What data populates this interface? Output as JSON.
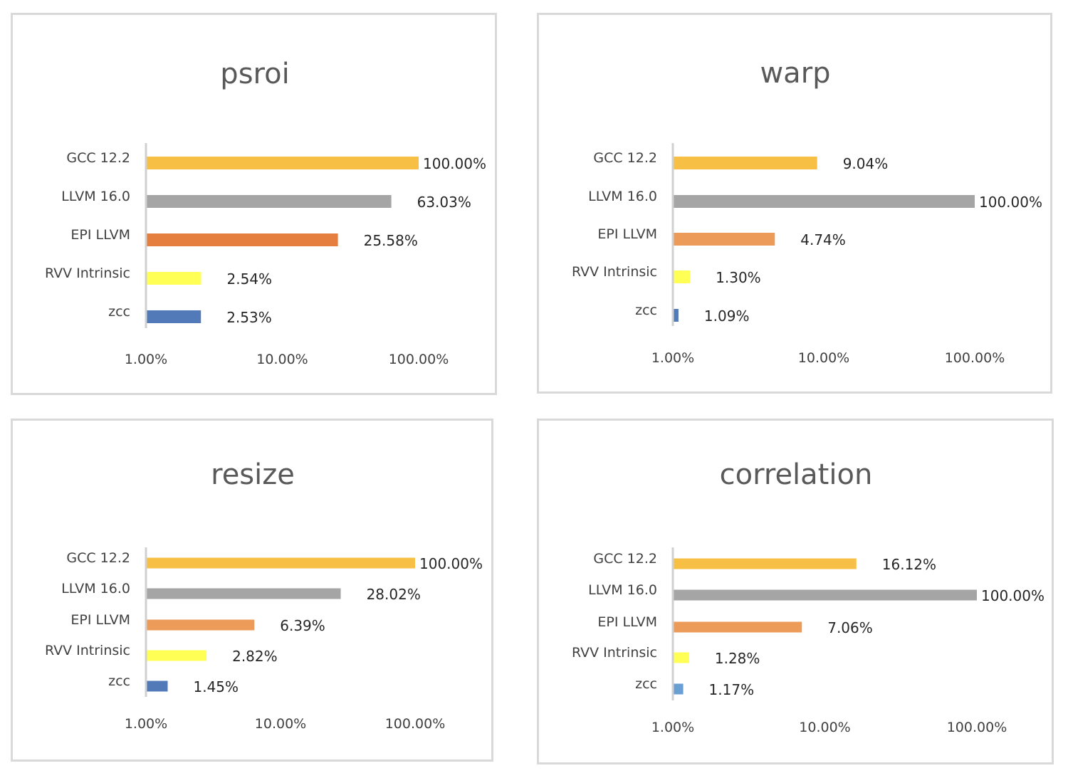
{
  "chart_data": [
    {
      "type": "bar",
      "orientation": "horizontal",
      "title": "psroi",
      "x_scale": "log",
      "xlim": [
        0.01,
        1.0
      ],
      "x_ticks": [
        "1.00%",
        "10.00%",
        "100.00%"
      ],
      "categories": [
        "GCC 12.2",
        "LLVM 16.0",
        "EPI LLVM",
        "RVV Intrinsic",
        "zcc"
      ],
      "values": [
        1.0,
        0.6303,
        0.2558,
        0.0254,
        0.0253
      ],
      "value_labels": [
        "100.00%",
        "63.03%",
        "25.58%",
        "2.54%",
        "2.53%"
      ],
      "colors": [
        "#f8bf45",
        "#a5a5a5",
        "#e57f3f",
        "#ffff55",
        "#527ab8"
      ]
    },
    {
      "type": "bar",
      "orientation": "horizontal",
      "title": "warp",
      "x_scale": "log",
      "xlim": [
        0.01,
        1.0
      ],
      "x_ticks": [
        "1.00%",
        "10.00%",
        "100.00%"
      ],
      "categories": [
        "GCC 12.2",
        "LLVM 16.0",
        "EPI LLVM",
        "RVV Intrinsic",
        "zcc"
      ],
      "values": [
        0.0904,
        1.0,
        0.0474,
        0.013,
        0.0109
      ],
      "value_labels": [
        "9.04%",
        "100.00%",
        "4.74%",
        "1.30%",
        "1.09%"
      ],
      "colors": [
        "#f8bf45",
        "#a5a5a5",
        "#ed9b59",
        "#ffff55",
        "#527ab8"
      ]
    },
    {
      "type": "bar",
      "orientation": "horizontal",
      "title": "resize",
      "x_scale": "log",
      "xlim": [
        0.01,
        1.0
      ],
      "x_ticks": [
        "1.00%",
        "10.00%",
        "100.00%"
      ],
      "categories": [
        "GCC 12.2",
        "LLVM 16.0",
        "EPI LLVM",
        "RVV Intrinsic",
        "zcc"
      ],
      "values": [
        1.0,
        0.2802,
        0.0639,
        0.0282,
        0.0145
      ],
      "value_labels": [
        "100.00%",
        "28.02%",
        "6.39%",
        "2.82%",
        "1.45%"
      ],
      "colors": [
        "#f8bf45",
        "#a5a5a5",
        "#ed9b59",
        "#ffff55",
        "#527ab8"
      ]
    },
    {
      "type": "bar",
      "orientation": "horizontal",
      "title": "correlation",
      "x_scale": "log",
      "xlim": [
        0.01,
        1.0
      ],
      "x_ticks": [
        "1.00%",
        "10.00%",
        "100.00%"
      ],
      "categories": [
        "GCC 12.2",
        "LLVM 16.0",
        "EPI LLVM",
        "RVV Intrinsic",
        "zcc"
      ],
      "values": [
        0.1612,
        1.0,
        0.0706,
        0.0128,
        0.0117
      ],
      "value_labels": [
        "16.12%",
        "100.00%",
        "7.06%",
        "1.28%",
        "1.17%"
      ],
      "colors": [
        "#f8bf45",
        "#a5a5a5",
        "#ed9b59",
        "#ffff55",
        "#6a9fd4"
      ]
    }
  ]
}
